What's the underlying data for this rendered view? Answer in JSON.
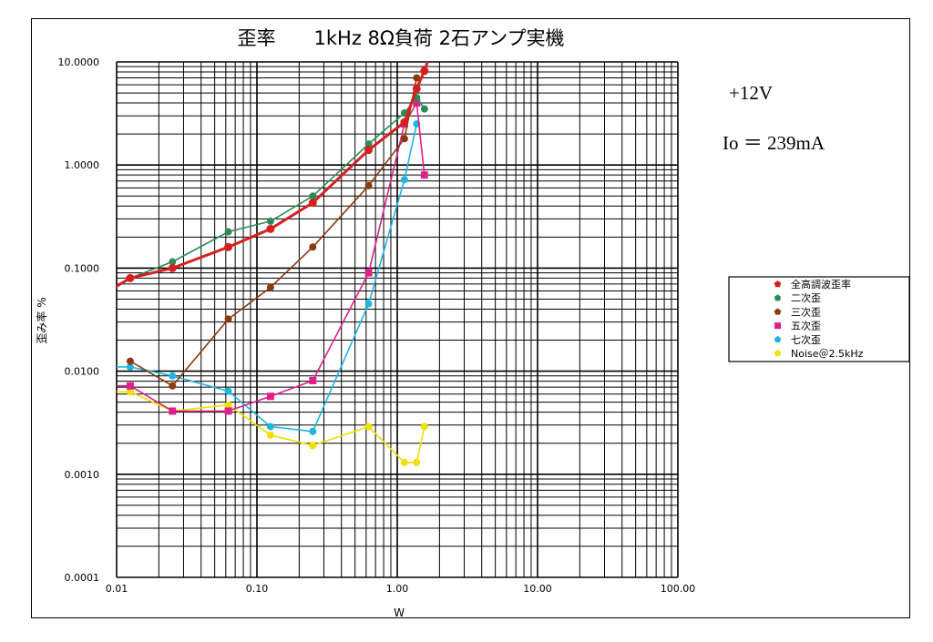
{
  "chart_data": {
    "type": "line",
    "title": "歪率　　1kHz 8Ω負荷 2石アンプ実機",
    "xlabel": "W",
    "ylabel": "歪み率 %",
    "x_scale": "log",
    "y_scale": "log",
    "xlim": [
      0.01,
      100
    ],
    "ylim": [
      0.0001,
      10
    ],
    "x_ticks": [
      "0.01",
      "0.10",
      "1.00",
      "10.00",
      "100.00"
    ],
    "y_ticks": [
      "0.0001",
      "0.0010",
      "0.0100",
      "0.1000",
      "1.0000",
      "10.0000"
    ],
    "grid": true,
    "legend_position": "right",
    "annotations": [
      "+12V",
      "Io ＝ 239mA"
    ],
    "series": [
      {
        "name": "全高調波歪率",
        "color": "#d42020",
        "marker": "circle",
        "points": [
          [
            0.0125,
            0.08
          ],
          [
            0.025,
            0.1
          ],
          [
            0.0625,
            0.16
          ],
          [
            0.125,
            0.24
          ],
          [
            0.25,
            0.43
          ],
          [
            0.625,
            1.4
          ],
          [
            1.125,
            2.6
          ],
          [
            1.375,
            5.5
          ],
          [
            1.5625,
            8.2
          ]
        ]
      },
      {
        "name": "二次歪",
        "color": "#2e8b57",
        "marker": "circle",
        "points": [
          [
            0.0125,
            0.08
          ],
          [
            0.025,
            0.115
          ],
          [
            0.0625,
            0.225
          ],
          [
            0.125,
            0.285
          ],
          [
            0.25,
            0.5
          ],
          [
            0.625,
            1.6
          ],
          [
            1.125,
            3.2
          ],
          [
            1.375,
            4.5
          ],
          [
            1.5625,
            3.5
          ]
        ]
      },
      {
        "name": "三次歪",
        "color": "#8b3a0f",
        "marker": "circle",
        "points": [
          [
            0.0125,
            0.0125
          ],
          [
            0.025,
            0.0072
          ],
          [
            0.0625,
            0.032
          ],
          [
            0.125,
            0.065
          ],
          [
            0.25,
            0.16
          ],
          [
            0.625,
            0.63
          ],
          [
            1.125,
            1.8
          ],
          [
            1.375,
            7.0
          ]
        ]
      },
      {
        "name": "五次歪",
        "color": "#e0208a",
        "marker": "square",
        "points": [
          [
            0.0125,
            0.0072
          ],
          [
            0.025,
            0.0041
          ],
          [
            0.0625,
            0.0041
          ],
          [
            0.125,
            0.0057
          ],
          [
            0.25,
            0.0081
          ],
          [
            0.625,
            0.09
          ],
          [
            1.125,
            2.5
          ],
          [
            1.375,
            4.0
          ],
          [
            1.5625,
            0.8
          ]
        ]
      },
      {
        "name": "七次歪",
        "color": "#22b4e0",
        "marker": "circle",
        "points": [
          [
            0.0125,
            0.011
          ],
          [
            0.025,
            0.009
          ],
          [
            0.0625,
            0.0064
          ],
          [
            0.125,
            0.0029
          ],
          [
            0.25,
            0.0026
          ],
          [
            0.625,
            0.045
          ],
          [
            1.125,
            0.72
          ],
          [
            1.375,
            2.5
          ]
        ]
      },
      {
        "name": "Noise＠2.5kHz",
        "color": "#f0e000",
        "marker": "circle",
        "points": [
          [
            0.0125,
            0.0063
          ],
          [
            0.025,
            0.0041
          ],
          [
            0.0625,
            0.0047
          ],
          [
            0.125,
            0.0024
          ],
          [
            0.25,
            0.0019
          ],
          [
            0.625,
            0.0029
          ],
          [
            1.125,
            0.0013
          ],
          [
            1.375,
            0.0013
          ],
          [
            1.5625,
            0.0029
          ]
        ]
      }
    ]
  }
}
